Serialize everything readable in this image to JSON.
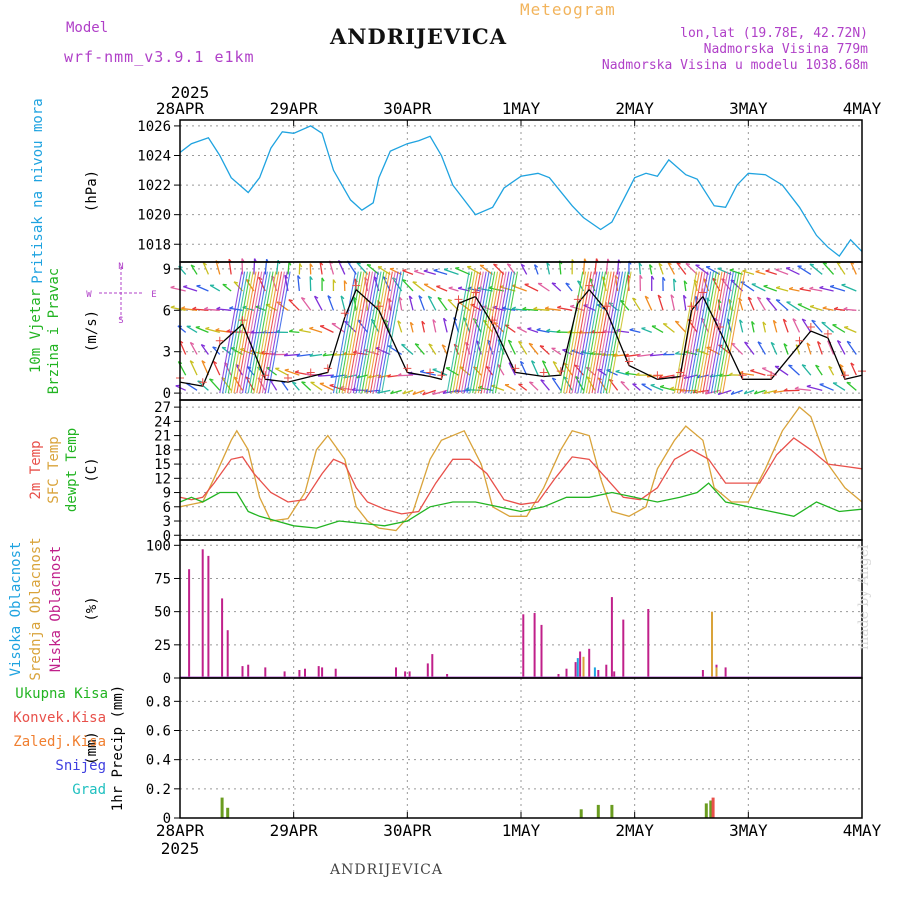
{
  "header": {
    "meteogram_label": "Meteogram",
    "model_label": "Model",
    "model_name": "wrf-nmm_v3.9.1 e1km",
    "station": "ANDRIJEVICA",
    "lonlat": "lon,lat (19.78E, 42.72N)",
    "elevation": "Nadmorska Visina 779m",
    "model_elevation": "Nadmorska Visina u modelu 1038.68m",
    "year_top": "2025",
    "year_bottom": "2025"
  },
  "footer": {
    "station": "ANDRIJEVICA",
    "credit": "made by Angel"
  },
  "colors": {
    "pressure": "#1fa3e0",
    "temp2m": "#e8504a",
    "sfc_temp": "#d9a33a",
    "dewpoint": "#22b422",
    "grid": "#999999",
    "label_green": "#22b422",
    "label_red": "#e8504a",
    "label_orange": "#f07f30",
    "label_blue": "#4040e0",
    "label_cyan": "#20c0c0",
    "label_magenta": "#c0208a",
    "label_violet": "#b040c8",
    "label_gold": "#d9a33a"
  },
  "x_axis": {
    "day_labels": [
      "28APR",
      "29APR",
      "30APR",
      "1MAY",
      "2MAY",
      "3MAY",
      "4MAY"
    ],
    "range_days": [
      0,
      6
    ]
  },
  "chart_data": [
    {
      "type": "line",
      "panel": "pressure",
      "ylabel_lines": [
        "Pritisak na nivou mora"
      ],
      "unit": "(hPa)",
      "yticks": [
        1018,
        1020,
        1022,
        1024,
        1026
      ],
      "ylim": [
        1016.8,
        1026.4
      ],
      "grid": true,
      "series": [
        {
          "color": "#1fa3e0",
          "x": [
            0,
            0.1,
            0.25,
            0.35,
            0.45,
            0.6,
            0.7,
            0.8,
            0.9,
            1.0,
            1.15,
            1.25,
            1.35,
            1.5,
            1.6,
            1.7,
            1.75,
            1.85,
            2.0,
            2.1,
            2.2,
            2.3,
            2.4,
            2.6,
            2.75,
            2.85,
            3.0,
            3.15,
            3.25,
            3.45,
            3.55,
            3.7,
            3.8,
            3.9,
            4.0,
            4.1,
            4.2,
            4.3,
            4.45,
            4.55,
            4.7,
            4.8,
            4.9,
            5.0,
            5.15,
            5.3,
            5.45,
            5.6,
            5.7,
            5.8,
            5.9,
            6.0
          ],
          "values": [
            1024.2,
            1024.8,
            1025.2,
            1024.0,
            1022.5,
            1021.5,
            1022.5,
            1024.5,
            1025.6,
            1025.5,
            1026.0,
            1025.5,
            1023.0,
            1021.0,
            1020.3,
            1020.8,
            1022.5,
            1024.3,
            1024.8,
            1025.0,
            1025.3,
            1024.0,
            1022.0,
            1020.0,
            1020.5,
            1021.8,
            1022.6,
            1022.8,
            1022.5,
            1020.6,
            1019.8,
            1019.0,
            1019.5,
            1021.0,
            1022.5,
            1022.8,
            1022.6,
            1023.7,
            1022.7,
            1022.4,
            1020.6,
            1020.5,
            1022.0,
            1022.8,
            1022.7,
            1022.0,
            1020.5,
            1018.6,
            1017.8,
            1017.2,
            1018.3,
            1017.5
          ]
        }
      ]
    },
    {
      "type": "line",
      "panel": "wind",
      "ylabel_lines": [
        "10m Vjetar",
        "Brzina i Pravac"
      ],
      "unit": "(m/s)",
      "compass": [
        "N",
        "W",
        "E",
        "S"
      ],
      "yticks": [
        0,
        3,
        6,
        9
      ],
      "ylim": [
        -0.5,
        9.5
      ],
      "grid": true,
      "series": [
        {
          "color": "#000000",
          "x": [
            0,
            0.2,
            0.35,
            0.55,
            0.75,
            0.95,
            1.15,
            1.3,
            1.45,
            1.55,
            1.75,
            2.0,
            2.2,
            2.3,
            2.45,
            2.6,
            2.75,
            2.95,
            3.2,
            3.35,
            3.5,
            3.6,
            3.75,
            3.95,
            4.2,
            4.4,
            4.5,
            4.6,
            4.75,
            4.95,
            5.2,
            5.45,
            5.55,
            5.7,
            5.85,
            6.0
          ],
          "values": [
            0.8,
            0.5,
            3.5,
            5.0,
            1.0,
            0.8,
            1.2,
            1.5,
            5.5,
            7.5,
            6.0,
            1.5,
            1.2,
            1.0,
            6.5,
            7.0,
            5.0,
            1.5,
            1.2,
            1.3,
            6.5,
            7.5,
            6.0,
            2.0,
            1.0,
            1.2,
            6.0,
            7.0,
            4.5,
            1.0,
            1.0,
            3.5,
            4.5,
            4.0,
            1.0,
            1.3
          ]
        }
      ],
      "barbs_rows": [
        0.2,
        1.3,
        2.8,
        4.4,
        6.0,
        7.4,
        8.6
      ]
    },
    {
      "type": "line",
      "panel": "temperature",
      "ylabel_lines": [
        "2m Temp",
        "SFC Temp",
        "dewpt Temp"
      ],
      "unit": "(C)",
      "yticks": [
        0,
        3,
        6,
        9,
        12,
        15,
        18,
        21,
        24,
        27
      ],
      "ylim": [
        -1,
        28.5
      ],
      "grid": true,
      "series": [
        {
          "name": "SFC Temp",
          "color": "#d9a33a",
          "x": [
            0,
            0.1,
            0.2,
            0.3,
            0.45,
            0.5,
            0.6,
            0.7,
            0.8,
            0.95,
            1.1,
            1.2,
            1.3,
            1.45,
            1.55,
            1.65,
            1.75,
            1.9,
            2.05,
            2.2,
            2.3,
            2.5,
            2.65,
            2.75,
            2.9,
            3.05,
            3.2,
            3.35,
            3.45,
            3.6,
            3.7,
            3.8,
            3.95,
            4.1,
            4.2,
            4.35,
            4.45,
            4.6,
            4.7,
            4.85,
            5.0,
            5.15,
            5.3,
            5.45,
            5.55,
            5.7,
            5.85,
            6.0
          ],
          "values": [
            6,
            6.5,
            7,
            12,
            20,
            22,
            18,
            8,
            3,
            3.5,
            9,
            18,
            21,
            16,
            6,
            3,
            1.5,
            1,
            5,
            16,
            20,
            22,
            15,
            6,
            4,
            4,
            10,
            18,
            22,
            21,
            12,
            5,
            4,
            6,
            14,
            20,
            23,
            20,
            10,
            7,
            7,
            14,
            22,
            27,
            25,
            15,
            10,
            7
          ]
        },
        {
          "name": "2m Temp",
          "color": "#e8504a",
          "x": [
            0,
            0.1,
            0.2,
            0.3,
            0.45,
            0.55,
            0.65,
            0.8,
            0.95,
            1.1,
            1.25,
            1.35,
            1.45,
            1.55,
            1.65,
            1.8,
            1.95,
            2.1,
            2.25,
            2.4,
            2.55,
            2.7,
            2.85,
            3.0,
            3.15,
            3.3,
            3.45,
            3.6,
            3.75,
            3.9,
            4.05,
            4.2,
            4.35,
            4.5,
            4.65,
            4.8,
            4.95,
            5.1,
            5.25,
            5.4,
            5.55,
            5.7,
            5.85,
            6.0
          ],
          "values": [
            8,
            7.5,
            8,
            11,
            16,
            16.5,
            13,
            9,
            7,
            7.5,
            13,
            16,
            15,
            10,
            7,
            5.5,
            4.5,
            5,
            11,
            16,
            16,
            13,
            7.5,
            6.5,
            7,
            12,
            16.5,
            16,
            12,
            8,
            7.5,
            10,
            16,
            18,
            16,
            11,
            11,
            11,
            17,
            20.5,
            18,
            15,
            14.5,
            14
          ]
        },
        {
          "name": "dewpt Temp",
          "color": "#22b422",
          "x": [
            0,
            0.1,
            0.2,
            0.35,
            0.5,
            0.6,
            0.7,
            0.85,
            1.0,
            1.2,
            1.4,
            1.6,
            1.8,
            2.0,
            2.2,
            2.4,
            2.6,
            2.8,
            3.0,
            3.2,
            3.4,
            3.6,
            3.8,
            4.0,
            4.2,
            4.4,
            4.55,
            4.65,
            4.8,
            5.0,
            5.2,
            5.4,
            5.6,
            5.8,
            6.0
          ],
          "values": [
            7,
            8,
            7,
            9,
            9,
            5,
            4,
            3,
            2,
            1.5,
            3,
            2.5,
            2,
            3,
            6,
            7,
            7,
            6,
            5,
            6,
            8,
            8,
            9,
            8,
            7,
            8,
            9,
            11,
            7,
            6,
            5,
            4,
            7,
            5,
            5.5
          ]
        }
      ]
    },
    {
      "type": "bar",
      "panel": "cloud",
      "ylabel_lines": [
        "Visoka Oblacnost",
        "Srednja Oblacnost",
        "Niska Oblacnost"
      ],
      "unit": "(%)",
      "yticks": [
        0,
        25,
        50,
        75,
        100
      ],
      "ylim": [
        0,
        104
      ],
      "grid": true,
      "series": [
        {
          "name": "Niska Oblacnost",
          "color": "#c0208a",
          "x": [
            0.08,
            0.2,
            0.25,
            0.37,
            0.42,
            0.55,
            0.6,
            0.75,
            0.92,
            1.05,
            1.1,
            1.22,
            1.25,
            1.37,
            1.9,
            1.98,
            2.02,
            2.18,
            2.22,
            2.35,
            3.02,
            3.12,
            3.18,
            3.33,
            3.4,
            3.48,
            3.52,
            3.6,
            3.68,
            3.75,
            3.8,
            3.82,
            3.9,
            4.12,
            4.6,
            4.68,
            4.72,
            4.8
          ],
          "values": [
            82,
            97,
            92,
            60,
            36,
            9,
            10,
            8,
            5,
            6,
            7,
            9,
            8,
            7,
            8,
            5,
            5,
            11,
            18,
            3,
            48,
            49,
            40,
            3,
            7,
            12,
            20,
            22,
            6,
            10,
            61,
            5,
            44,
            52,
            6,
            8,
            10,
            8
          ]
        },
        {
          "name": "Srednja Oblacnost",
          "color": "#d9a33a",
          "x": [
            3.55,
            4.68,
            4.72
          ],
          "values": [
            16,
            50,
            8
          ]
        },
        {
          "name": "Visoka Oblacnost",
          "color": "#1fa3e0",
          "x": [
            3.5,
            3.65
          ],
          "values": [
            15,
            8
          ]
        }
      ]
    },
    {
      "type": "bar",
      "panel": "precip",
      "ylabel_lines": [
        "1hr Precip (mm)"
      ],
      "unit": "(mm)",
      "legend": [
        "Ukupna Kisa",
        "Konvek.Kisa",
        "Zaledj.Kisa",
        "Snijeg",
        "Grad"
      ],
      "yticks": [
        0,
        0.2,
        0.4,
        0.6,
        0.8
      ],
      "ytick_labels": [
        "0",
        "0.2",
        "0.4",
        "0.6",
        "0.8"
      ],
      "ylim": [
        0,
        0.96
      ],
      "grid": true,
      "series": [
        {
          "name": "Ukupna Kisa",
          "color": "#6a9c20",
          "x": [
            0.37,
            0.42,
            3.53,
            3.68,
            3.8,
            4.63,
            4.67
          ],
          "values": [
            0.14,
            0.07,
            0.06,
            0.09,
            0.09,
            0.1,
            0.12
          ]
        },
        {
          "name": "Konvek.Kisa",
          "color": "#e8504a",
          "x": [
            4.69
          ],
          "values": [
            0.14
          ]
        }
      ]
    }
  ]
}
